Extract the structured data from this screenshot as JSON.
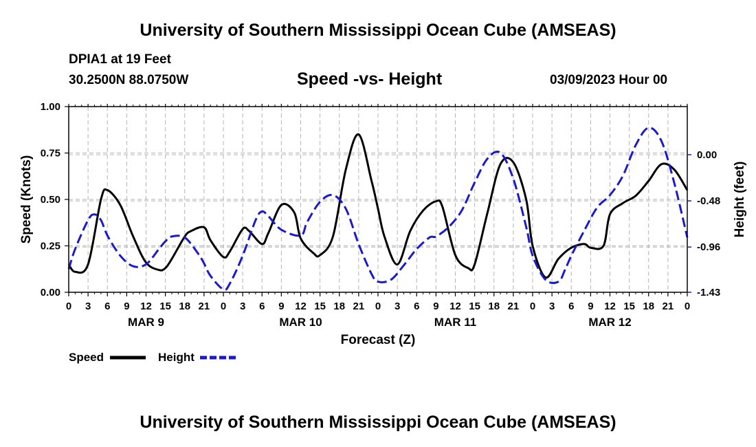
{
  "header": {
    "title": "University of Southern Mississippi Ocean Cube (AMSEAS)",
    "station": "DPIA1 at 19 Feet",
    "coords": "30.2500N  88.0750W",
    "date": "03/09/2023 Hour 00"
  },
  "footer": {
    "title": "University of Southern Mississippi Ocean Cube (AMSEAS)"
  },
  "chart_data": {
    "type": "line",
    "title": "Speed -vs- Height",
    "xlabel": "Forecast (Z)",
    "ylabel": "Speed (Knots)",
    "y2label": "Height (feet)",
    "x_unit": "forecast hour",
    "xlim": [
      0,
      96
    ],
    "ylim": [
      0,
      1
    ],
    "y2lim": [
      -1.43,
      0.5
    ],
    "x_tick_values": [
      0,
      3,
      6,
      9,
      12,
      15,
      18,
      21,
      24,
      27,
      30,
      33,
      36,
      39,
      42,
      45,
      48,
      51,
      54,
      57,
      60,
      63,
      66,
      69,
      72,
      75,
      78,
      81,
      84,
      87,
      90,
      93,
      96
    ],
    "x_tick_labels": [
      "0",
      "3",
      "6",
      "9",
      "12",
      "15",
      "18",
      "21",
      "0",
      "3",
      "6",
      "9",
      "12",
      "15",
      "18",
      "21",
      "0",
      "3",
      "6",
      "9",
      "12",
      "15",
      "18",
      "21",
      "0",
      "3",
      "6",
      "9",
      "12",
      "15",
      "18",
      "21",
      "0"
    ],
    "day_labels": [
      {
        "hour": 12,
        "label": "MAR 9"
      },
      {
        "hour": 36,
        "label": "MAR 10"
      },
      {
        "hour": 60,
        "label": "MAR 11"
      },
      {
        "hour": 84,
        "label": "MAR 12"
      }
    ],
    "y_ticks": [
      {
        "value": 0,
        "label": "0.00"
      },
      {
        "value": 0.25,
        "label": "0.25"
      },
      {
        "value": 0.5,
        "label": "0.50"
      },
      {
        "value": 0.75,
        "label": "0.75"
      },
      {
        "value": 1.0,
        "label": "1.00"
      }
    ],
    "y2_ticks": [
      {
        "value": 0.0,
        "label": "0.00"
      },
      {
        "value": -0.48,
        "label": "-0.48"
      },
      {
        "value": -0.96,
        "label": "-0.96"
      },
      {
        "value": -1.43,
        "label": "-1.43"
      }
    ],
    "series": [
      {
        "name": "Speed",
        "axis": "left",
        "color": "#000000",
        "dash": "solid",
        "x": [
          0,
          1,
          3,
          5,
          6,
          8,
          10,
          12,
          14,
          15,
          16,
          18,
          19,
          21,
          22,
          24,
          25,
          27,
          28,
          30,
          31,
          33,
          35,
          36,
          38,
          39,
          41,
          43,
          45,
          47,
          48,
          49,
          51,
          53,
          55,
          57,
          58,
          60,
          62,
          63,
          65,
          67,
          69,
          71,
          72,
          74,
          76,
          78,
          80,
          81,
          83,
          84,
          86,
          88,
          90,
          92,
          94,
          96
        ],
        "y": [
          0.15,
          0.11,
          0.15,
          0.5,
          0.55,
          0.47,
          0.3,
          0.16,
          0.12,
          0.13,
          0.18,
          0.3,
          0.33,
          0.35,
          0.28,
          0.19,
          0.22,
          0.34,
          0.33,
          0.26,
          0.32,
          0.47,
          0.43,
          0.29,
          0.21,
          0.2,
          0.3,
          0.66,
          0.85,
          0.6,
          0.45,
          0.3,
          0.15,
          0.33,
          0.44,
          0.49,
          0.46,
          0.2,
          0.13,
          0.15,
          0.43,
          0.69,
          0.7,
          0.5,
          0.25,
          0.08,
          0.18,
          0.24,
          0.26,
          0.24,
          0.25,
          0.42,
          0.48,
          0.52,
          0.6,
          0.69,
          0.66,
          0.55
        ]
      },
      {
        "name": "Height",
        "axis": "right",
        "color": "#1a1acc",
        "dash": "dashed",
        "x": [
          0,
          1,
          3,
          4,
          5,
          6,
          8,
          10,
          12,
          14,
          15,
          16,
          18,
          20,
          21,
          22,
          24,
          25,
          27,
          29,
          30,
          31,
          33,
          36,
          37,
          39,
          41,
          43,
          45,
          47,
          48,
          50,
          52,
          54,
          56,
          57,
          59,
          61,
          63,
          65,
          67,
          69,
          71,
          72,
          74,
          76,
          77,
          78,
          80,
          82,
          84,
          86,
          88,
          90,
          92,
          94,
          96
        ],
        "y": [
          -1.19,
          -0.98,
          -0.68,
          -0.62,
          -0.68,
          -0.84,
          -1.05,
          -1.16,
          -1.14,
          -0.98,
          -0.9,
          -0.85,
          -0.86,
          -1.02,
          -1.13,
          -1.26,
          -1.4,
          -1.34,
          -1.05,
          -0.68,
          -0.59,
          -0.64,
          -0.78,
          -0.84,
          -0.7,
          -0.49,
          -0.42,
          -0.56,
          -0.93,
          -1.24,
          -1.32,
          -1.3,
          -1.15,
          -0.98,
          -0.86,
          -0.85,
          -0.75,
          -0.58,
          -0.29,
          -0.04,
          0.02,
          -0.25,
          -0.75,
          -1.05,
          -1.3,
          -1.32,
          -1.2,
          -1.05,
          -0.79,
          -0.55,
          -0.42,
          -0.22,
          0.1,
          0.28,
          0.14,
          -0.3,
          -0.86
        ]
      }
    ]
  }
}
